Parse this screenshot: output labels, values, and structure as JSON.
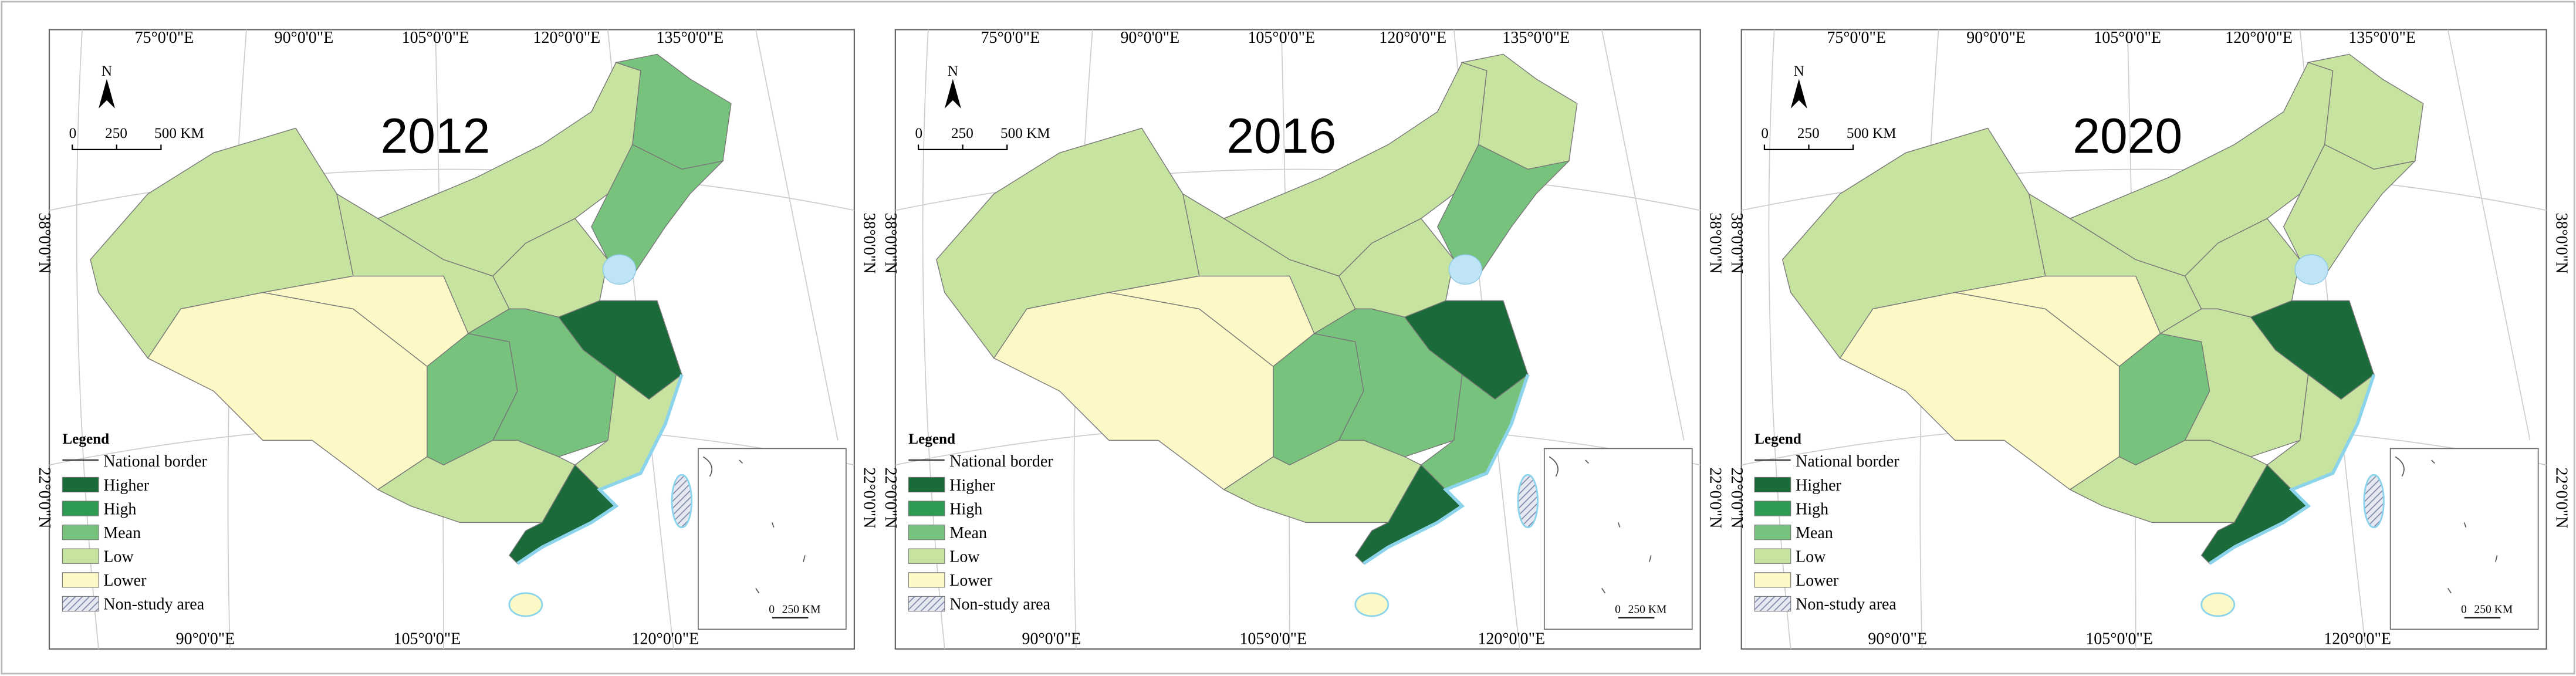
{
  "panels": [
    {
      "year": "2012"
    },
    {
      "year": "2016"
    },
    {
      "year": "2020"
    }
  ],
  "top_labels": [
    "75°0'0\"E",
    "90°0'0\"E",
    "105°0'0\"E",
    "120°0'0\"E",
    "135°0'0\"E"
  ],
  "bottom_labels": [
    "90°0'0\"E",
    "105°0'0\"E",
    "120°0'0\"E"
  ],
  "side_labels": [
    "38°0'0\"N",
    "22°0'0\"N"
  ],
  "north": "N",
  "scale": [
    "0",
    "250",
    "500 KM"
  ],
  "inset_scale": [
    "0",
    "250 KM"
  ],
  "legend": {
    "title": "Legend",
    "items": [
      {
        "label": "National border"
      },
      {
        "label": "Higher",
        "color": "#1b6b3a"
      },
      {
        "label": "High",
        "color": "#2f9a52"
      },
      {
        "label": "Mean",
        "color": "#77c27c"
      },
      {
        "label": "Low",
        "color": "#c6e3a0"
      },
      {
        "label": "Lower",
        "color": "#fcf9c6"
      },
      {
        "label": "Non-study area",
        "color": "#a9b4d0"
      }
    ]
  }
}
